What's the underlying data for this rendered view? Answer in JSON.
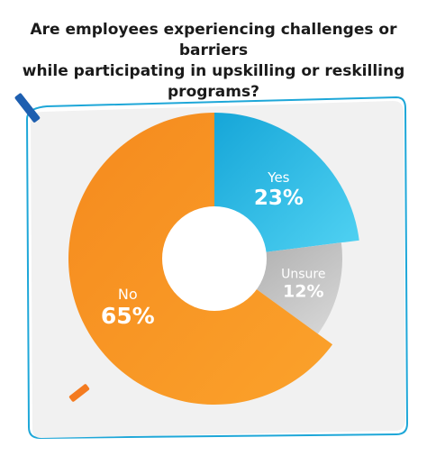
{
  "title": {
    "part1": "Are employees experiencing ",
    "bold": "challenges or barriers",
    "line2": "while participating in upskilling or reskilling programs?"
  },
  "colors": {
    "yes": "#1fb6df",
    "unsure": "#b5b5b5",
    "no": "#f7931e",
    "card": "#f1f1f1",
    "card_border": "#1ea7d8",
    "accent_blue": "#1e5fb0",
    "accent_orange": "#f47b20"
  },
  "chart_data": {
    "type": "pie",
    "donut": true,
    "title": "Are employees experiencing challenges or barriers while participating in upskilling or reskilling programs?",
    "slices": [
      {
        "label": "Yes",
        "value": 23,
        "value_label": "23%",
        "color": "#1fb6df"
      },
      {
        "label": "Unsure",
        "value": 12,
        "value_label": "12%",
        "color": "#b5b5b5"
      },
      {
        "label": "No",
        "value": 65,
        "value_label": "65%",
        "color": "#f7931e"
      }
    ]
  }
}
